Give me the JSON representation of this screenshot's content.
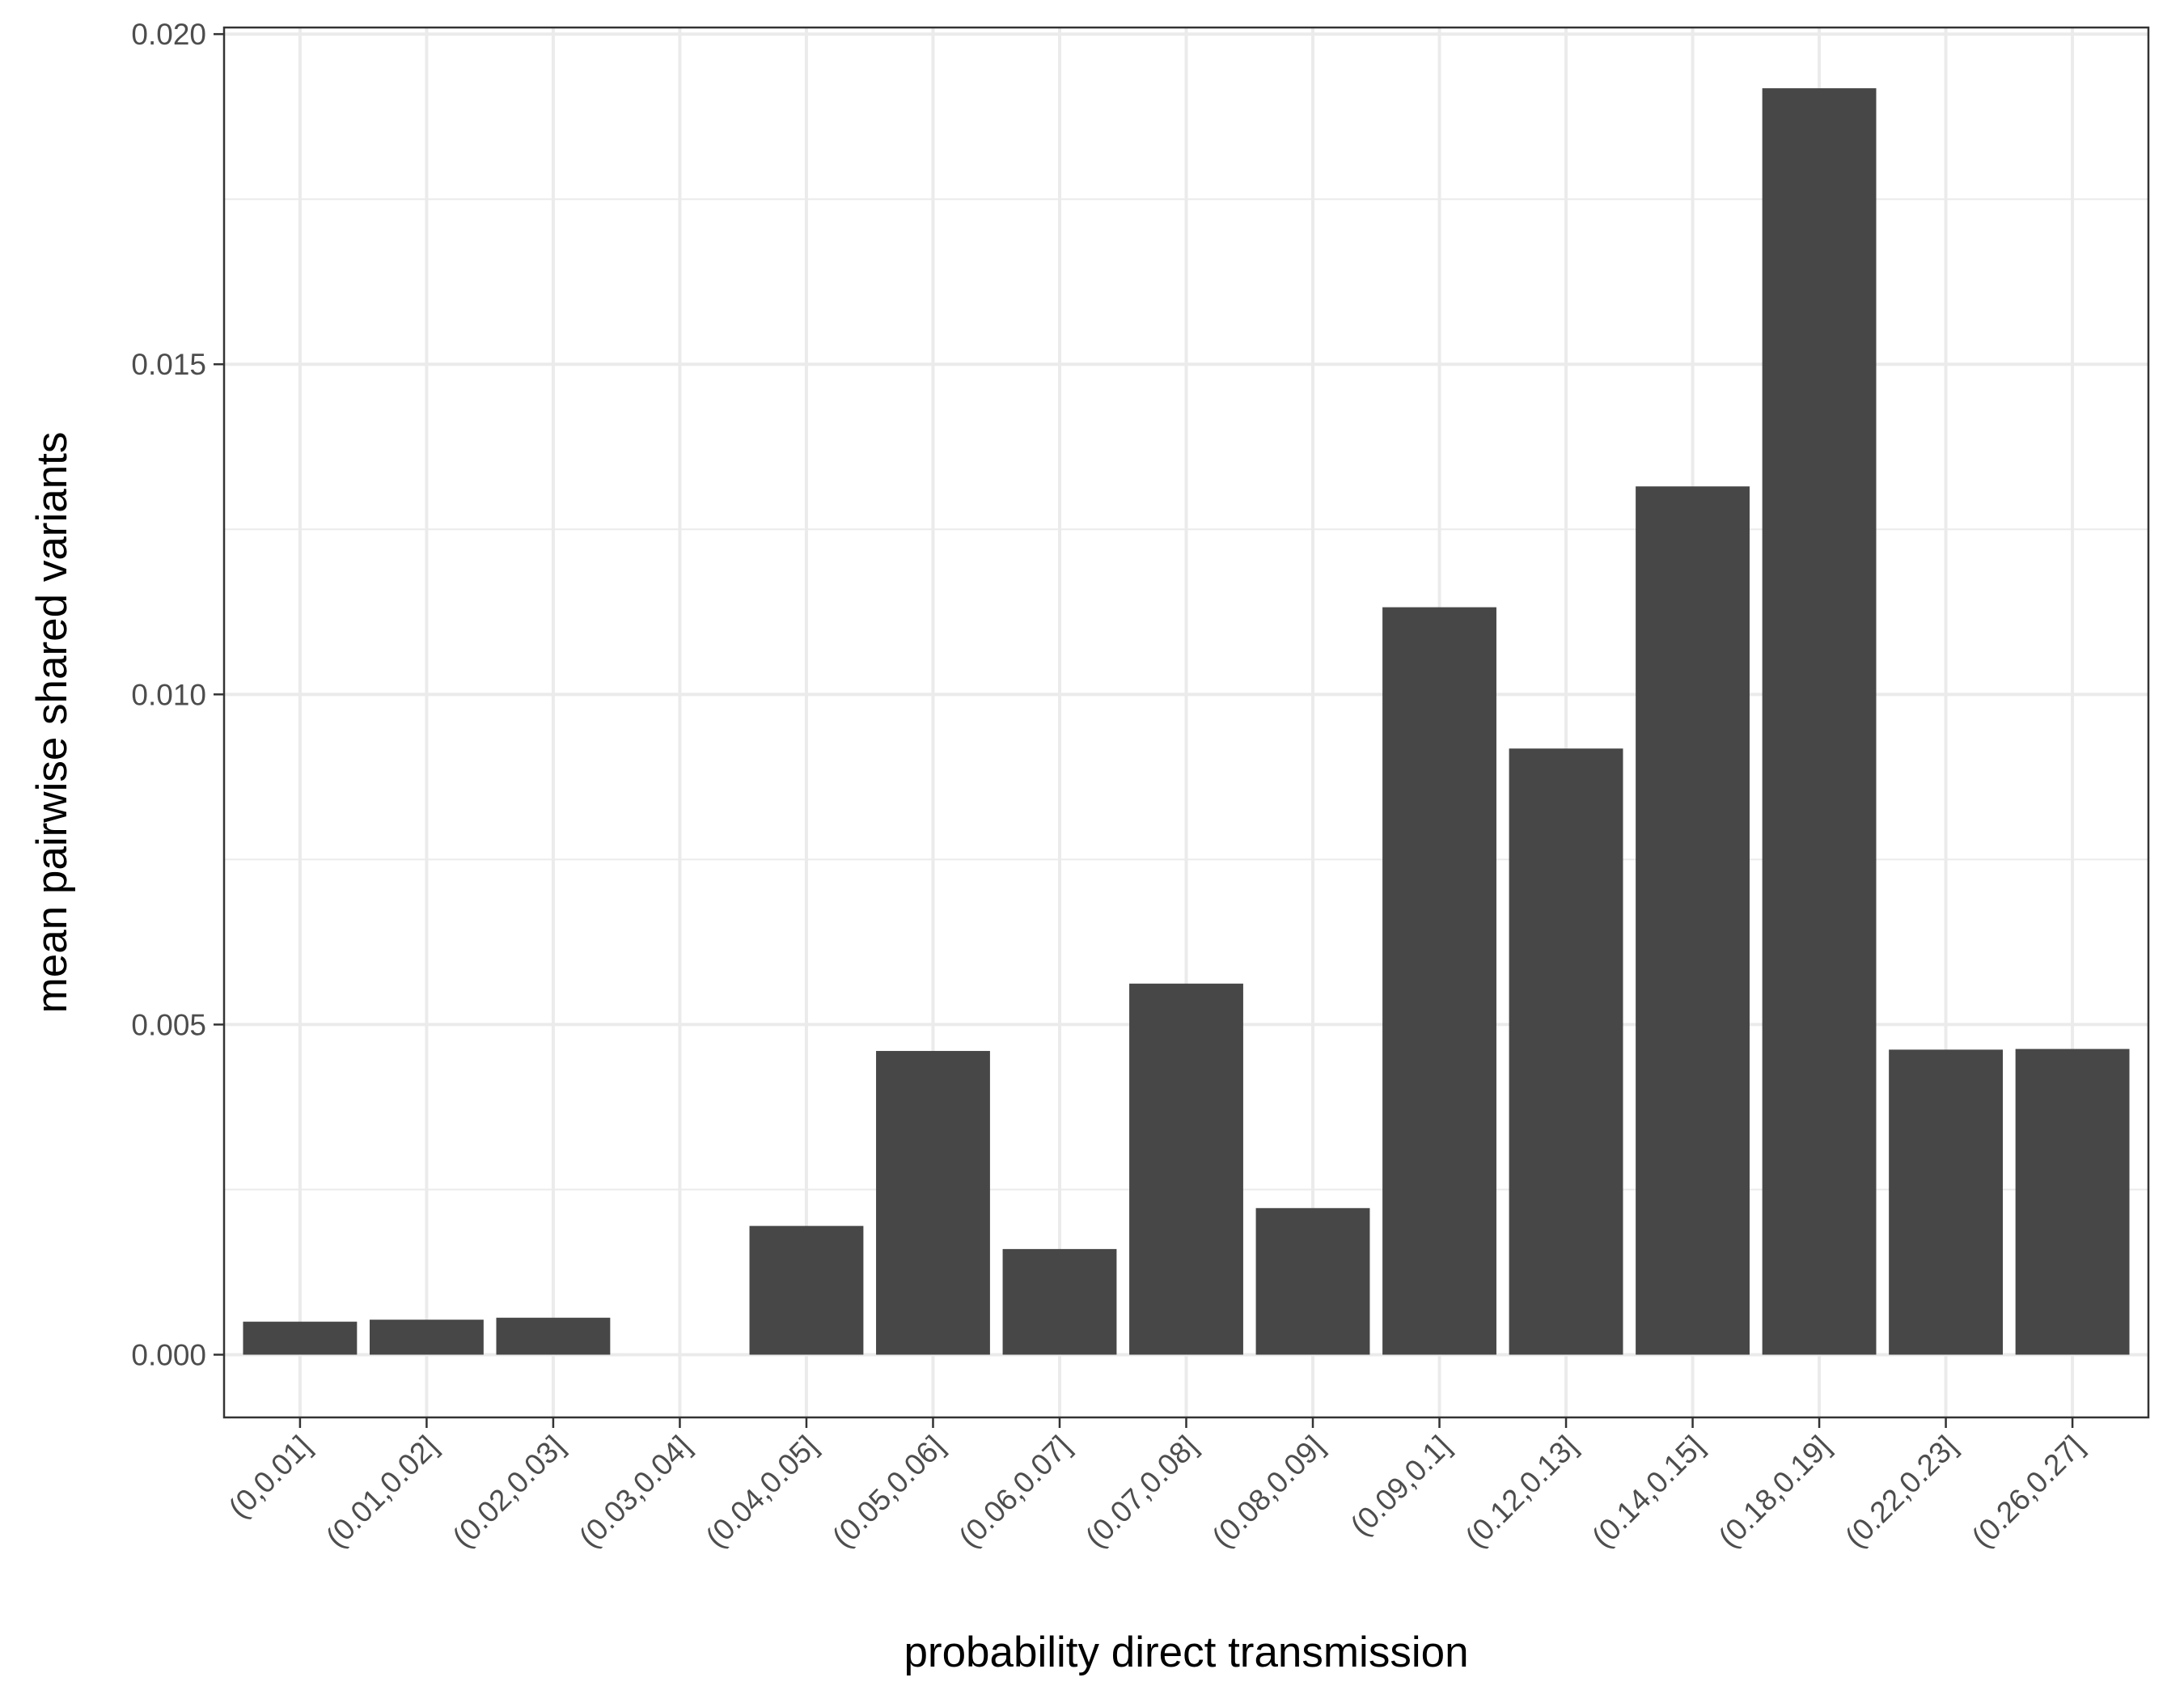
{
  "chart_data": {
    "type": "bar",
    "title": "",
    "xlabel": "probability direct transmission",
    "ylabel": "mean pairwise shared variants",
    "categories": [
      "(0,0.01]",
      "(0.01,0.02]",
      "(0.02,0.03]",
      "(0.03,0.04]",
      "(0.04,0.05]",
      "(0.05,0.06]",
      "(0.06,0.07]",
      "(0.07,0.08]",
      "(0.08,0.09]",
      "(0.09,0.1]",
      "(0.12,0.13]",
      "(0.14,0.15]",
      "(0.18,0.19]",
      "(0.22,0.23]",
      "(0.26,0.27]"
    ],
    "values": [
      0.0005,
      0.00053,
      0.00056,
      0.0,
      0.00195,
      0.0046,
      0.0016,
      0.00562,
      0.00222,
      0.01132,
      0.00918,
      0.01315,
      0.01918,
      0.00462,
      0.00463
    ],
    "ylim": [
      -0.00095,
      0.0201
    ],
    "yticks": [
      "0.000",
      "0.005",
      "0.010",
      "0.015",
      "0.020"
    ],
    "grid": true,
    "legend": "none",
    "bar_color": "#474747",
    "grid_color": "#ebebeb",
    "frame_color": "#333333"
  }
}
